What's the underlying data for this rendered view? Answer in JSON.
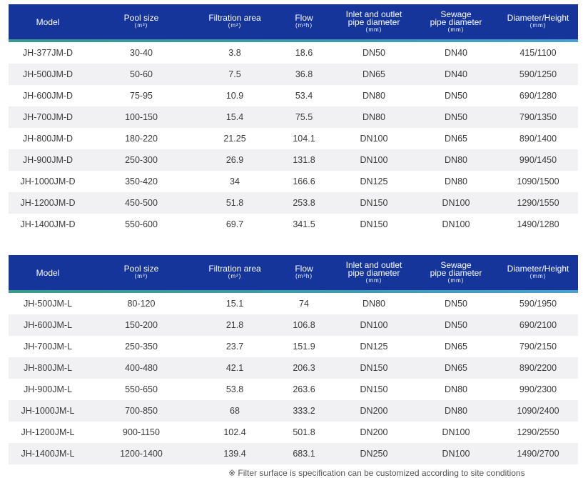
{
  "header": {
    "model": "Model",
    "pool_size": "Pool size",
    "pool_size_unit": "(m³)",
    "filtration_area": "Filtration area",
    "filtration_area_unit": "(m²)",
    "flow": "Flow",
    "flow_unit": "(m³h)",
    "inlet_line1": "Inlet and outlet",
    "inlet_line2": "pipe diameter",
    "inlet_unit": "(mm)",
    "sewage_line1": "Sewage",
    "sewage_line2": "pipe diameter",
    "sewage_unit": "(mm)",
    "diameter_height": "Diameter/Height",
    "diameter_height_unit": "(mm)"
  },
  "table_d": {
    "rows": [
      [
        "JH-377JM-D",
        "30-40",
        "3.8",
        "18.6",
        "DN50",
        "DN40",
        "415/1100"
      ],
      [
        "JH-500JM-D",
        "50-60",
        "7.5",
        "36.8",
        "DN65",
        "DN40",
        "590/1250"
      ],
      [
        "JH-600JM-D",
        "75-95",
        "10.9",
        "53.4",
        "DN80",
        "DN50",
        "690/1280"
      ],
      [
        "JH-700JM-D",
        "100-150",
        "15.4",
        "75.5",
        "DN80",
        "DN50",
        "790/1350"
      ],
      [
        "JH-800JM-D",
        "180-220",
        "21.25",
        "104.1",
        "DN100",
        "DN65",
        "890/1400"
      ],
      [
        "JH-900JM-D",
        "250-300",
        "26.9",
        "131.8",
        "DN100",
        "DN80",
        "990/1450"
      ],
      [
        "JH-1000JM-D",
        "350-420",
        "34",
        "166.6",
        "DN125",
        "DN80",
        "1090/1500"
      ],
      [
        "JH-1200JM-D",
        "450-500",
        "51.8",
        "253.8",
        "DN150",
        "DN100",
        "1290/1550"
      ],
      [
        "JH-1400JM-D",
        "550-600",
        "69.7",
        "341.5",
        "DN150",
        "DN100",
        "1490/1280"
      ]
    ]
  },
  "table_l": {
    "rows": [
      [
        "JH-500JM-L",
        "80-120",
        "15.1",
        "74",
        "DN80",
        "DN50",
        "590/1950"
      ],
      [
        "JH-600JM-L",
        "150-200",
        "21.8",
        "106.8",
        "DN100",
        "DN50",
        "690/2100"
      ],
      [
        "JH-700JM-L",
        "250-350",
        "23.7",
        "151.9",
        "DN125",
        "DN65",
        "790/2150"
      ],
      [
        "JH-800JM-L",
        "400-480",
        "42.1",
        "206.3",
        "DN150",
        "DN65",
        "890/2200"
      ],
      [
        "JH-900JM-L",
        "550-650",
        "53.8",
        "263.6",
        "DN150",
        "DN80",
        "990/2300"
      ],
      [
        "JH-1000JM-L",
        "700-850",
        "68",
        "333.2",
        "DN200",
        "DN80",
        "1090/2400"
      ],
      [
        "JH-1200JM-L",
        "900-1150",
        "102.4",
        "501.8",
        "DN200",
        "DN100",
        "1290/2550"
      ],
      [
        "JH-1400JM-L",
        "1200-1400",
        "139.4",
        "683.1",
        "DN250",
        "DN100",
        "1490/2700"
      ]
    ]
  },
  "footnote": "※ Filter surface is specification can be customized according to site conditions"
}
